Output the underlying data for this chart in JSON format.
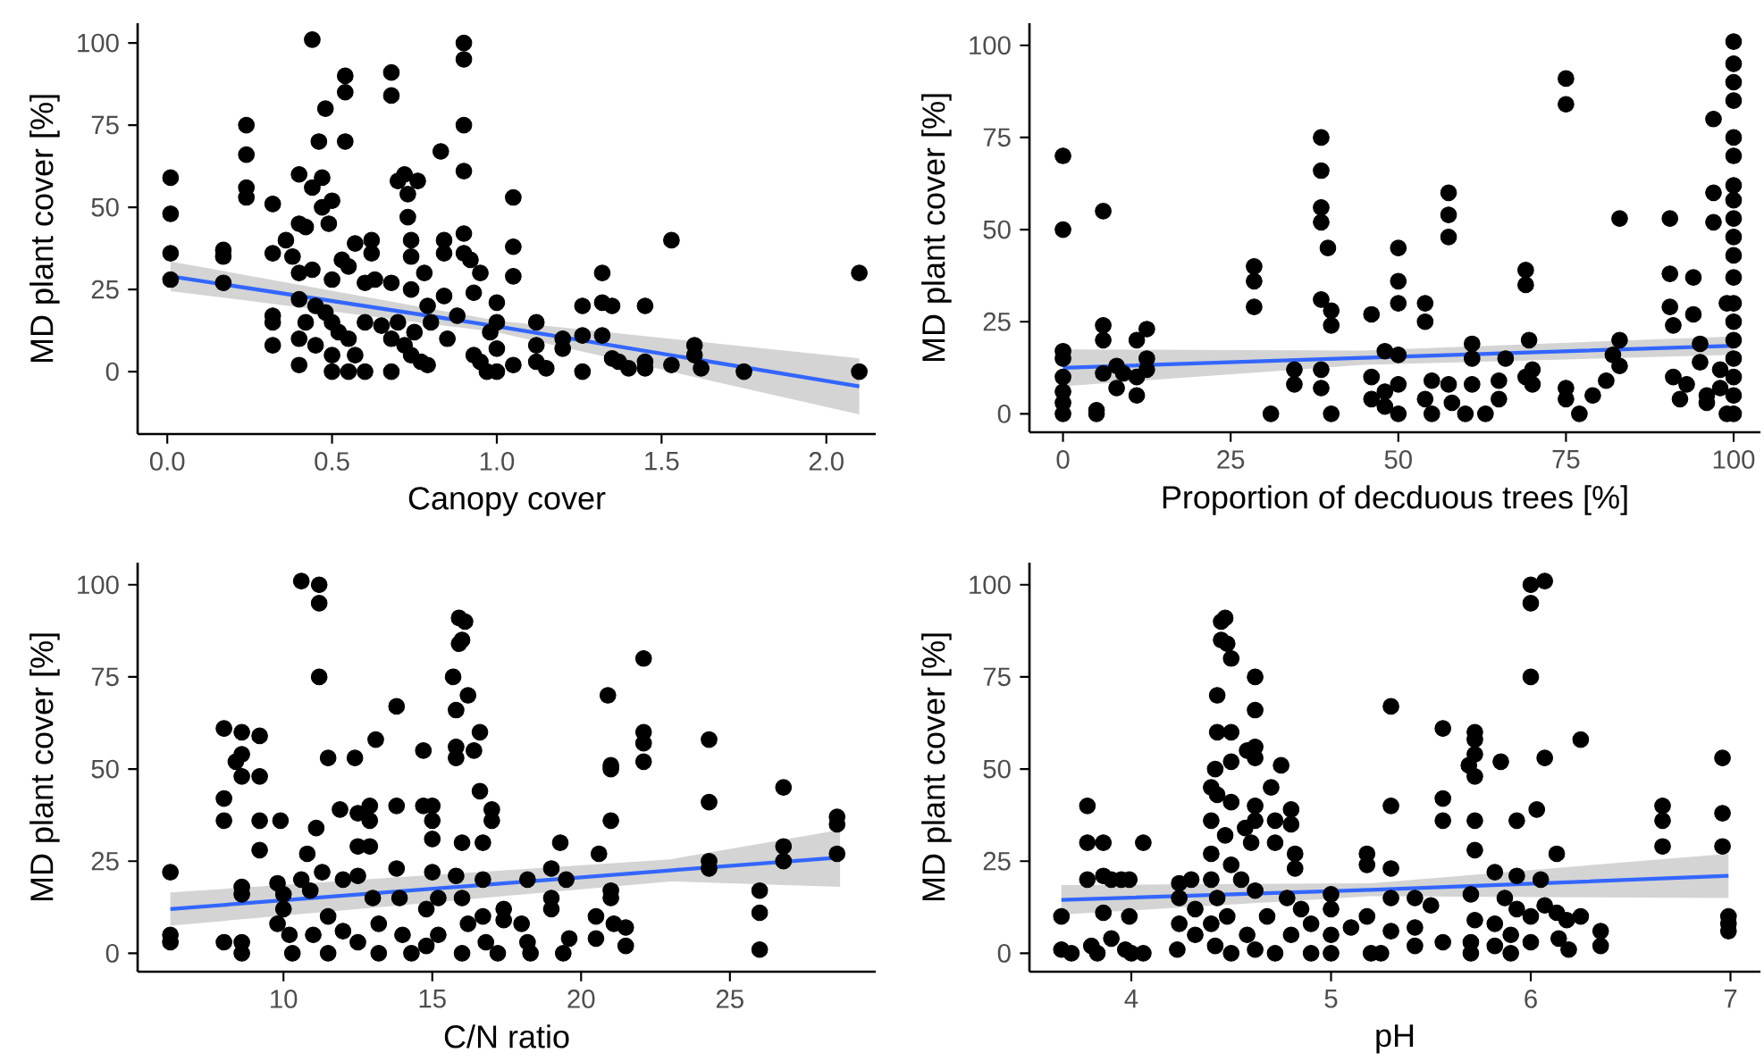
{
  "chart_data": [
    {
      "type": "scatter",
      "xlabel": "Canopy cover",
      "ylabel": "MD plant cover [%]",
      "xlim": [
        -0.09,
        2.15
      ],
      "ylim": [
        -19,
        106
      ],
      "xticks": [
        {
          "value": 0,
          "label": "0.0"
        },
        {
          "value": 0.5,
          "label": "0.5"
        },
        {
          "value": 1,
          "label": "1.0"
        },
        {
          "value": 1.5,
          "label": "1.5"
        },
        {
          "value": 2,
          "label": "2.0"
        }
      ],
      "yticks": [
        0,
        25,
        50,
        75,
        100
      ],
      "series": [
        {
          "color": "#000000",
          "marker": "circle",
          "x": [
            0.01,
            0.01,
            0.01,
            0.01,
            0.17,
            0.17,
            0.17,
            0.24,
            0.24,
            0.24,
            0.24,
            0.32,
            0.32,
            0.32,
            0.32,
            0.32,
            0.36,
            0.38,
            0.4,
            0.4,
            0.4,
            0.4,
            0.4,
            0.4,
            0.42,
            0.44,
            0.44,
            0.44,
            0.46,
            0.47,
            0.47,
            0.48,
            0.49,
            0.5,
            0.5,
            0.5,
            0.5,
            0.5,
            0.53,
            0.54,
            0.54,
            0.54,
            0.55,
            0.55,
            0.55,
            0.57,
            0.6,
            0.6,
            0.6,
            0.62,
            0.62,
            0.63,
            0.65,
            0.68,
            0.68,
            0.68,
            0.68,
            0.68,
            0.7,
            0.72,
            0.73,
            0.73,
            0.74,
            0.74,
            0.74,
            0.74,
            0.76,
            0.78,
            0.79,
            0.79,
            0.83,
            0.84,
            0.84,
            0.84,
            0.85,
            0.88,
            0.9,
            0.9,
            0.9,
            0.9,
            0.9,
            0.9,
            0.92,
            0.93,
            0.93,
            0.95,
            0.97,
            1.0,
            1.0,
            1.0,
            1.0,
            1.05,
            1.05,
            1.05,
            1.05,
            1.12,
            1.12,
            1.12,
            1.15,
            1.2,
            1.2,
            1.26,
            1.26,
            1.26,
            1.32,
            1.32,
            1.32,
            1.35,
            1.35,
            1.37,
            1.4,
            1.45,
            1.45,
            1.45,
            1.53,
            1.53,
            1.6,
            1.6,
            1.62,
            1.75,
            2.1,
            2.1,
            0.42,
            0.45,
            0.48,
            0.52,
            0.57,
            0.45,
            0.7,
            0.72,
            0.75,
            0.77,
            0.8,
            0.95,
            0.98
          ],
          "values": [
            59,
            48,
            36,
            28,
            37,
            35,
            27,
            75,
            66,
            56,
            53,
            51,
            36,
            17,
            15,
            8,
            40,
            35,
            60,
            45,
            30,
            22,
            10,
            2,
            44,
            101,
            56,
            31,
            70,
            59,
            50,
            80,
            45,
            52,
            28,
            15,
            5,
            0,
            34,
            90,
            85,
            70,
            32,
            10,
            0,
            39,
            27,
            15,
            0,
            40,
            36,
            28,
            14,
            91,
            84,
            27,
            10,
            0,
            58,
            60,
            54,
            47,
            40,
            35,
            25,
            5,
            58,
            30,
            20,
            2,
            67,
            40,
            36,
            23,
            10,
            17,
            100,
            95,
            75,
            61,
            42,
            36,
            34,
            24,
            5,
            30,
            0,
            21,
            15,
            7,
            0,
            53,
            38,
            29,
            2,
            15,
            8,
            3,
            1,
            10,
            7,
            20,
            11,
            0,
            30,
            21,
            11,
            20,
            4,
            3,
            1,
            20,
            1,
            3,
            40,
            2,
            8,
            5,
            1,
            0,
            30,
            0,
            15,
            8,
            18,
            12,
            5,
            20,
            15,
            8,
            12,
            3,
            15,
            3,
            12
          ]
        },
        {
          "type": "line",
          "color": "#3366ff",
          "x": [
            0.01,
            1.0,
            2.1
          ],
          "values": [
            29,
            13.8,
            -4.5
          ],
          "lower": [
            24.5,
            12,
            -13
          ],
          "upper": [
            33.5,
            15.5,
            4
          ]
        }
      ]
    },
    {
      "type": "scatter",
      "xlabel": "Proportion of decduous trees [%]",
      "ylabel": "MD plant cover [%]",
      "xlim": [
        -5,
        104
      ],
      "ylim": [
        -5,
        106
      ],
      "xticks": [
        0,
        25,
        50,
        75,
        100
      ],
      "yticks": [
        0,
        25,
        50,
        75,
        100
      ],
      "series": [
        {
          "color": "#000000",
          "marker": "circle",
          "x": [
            0,
            0,
            0,
            0,
            0,
            0,
            0,
            0,
            5,
            5,
            6,
            6,
            6,
            6,
            8,
            8,
            9,
            11,
            11,
            11,
            12.5,
            12.5,
            12.5,
            28.5,
            28.5,
            28.5,
            31,
            34.5,
            34.5,
            38.5,
            38.5,
            38.5,
            38.5,
            38.5,
            38.5,
            38.5,
            39.5,
            40,
            40,
            40,
            46,
            46,
            46,
            48,
            48,
            48,
            50,
            50,
            50,
            50,
            50,
            50,
            54,
            54,
            54,
            55,
            55,
            57.5,
            57.5,
            57.5,
            57.5,
            58,
            60,
            61,
            61,
            61,
            63,
            65,
            65,
            66,
            69,
            69,
            69,
            69.5,
            70,
            70,
            75,
            75,
            75,
            75,
            77,
            79,
            81,
            82,
            83,
            83,
            83,
            90.5,
            90.5,
            90.5,
            91,
            91,
            93,
            94,
            94,
            95,
            95,
            96,
            97,
            97,
            97,
            98,
            99,
            99,
            100,
            100,
            100,
            100,
            100,
            100,
            100,
            100,
            100,
            100,
            100,
            100,
            100,
            100,
            100,
            100,
            100,
            100,
            100,
            92,
            96,
            98
          ],
          "values": [
            70,
            50,
            17,
            15,
            10,
            6,
            3,
            0,
            1,
            0,
            55,
            24,
            20,
            11,
            13,
            7,
            11,
            20,
            10,
            5,
            23,
            15,
            12,
            40,
            36,
            29,
            0,
            12,
            8,
            75,
            66,
            56,
            52,
            31,
            12,
            7,
            45,
            28,
            24,
            0,
            27,
            10,
            4,
            17,
            6,
            2,
            45,
            36,
            30,
            16,
            8,
            0,
            30,
            25,
            4,
            9,
            0,
            60,
            54,
            48,
            8,
            3,
            0,
            19,
            15,
            8,
            0,
            9,
            4,
            15,
            39,
            35,
            10,
            20,
            12,
            8,
            91,
            84,
            7,
            4,
            0,
            5,
            9,
            16,
            53,
            20,
            13,
            53,
            38,
            29,
            24,
            10,
            8,
            37,
            27,
            19,
            14,
            5,
            80,
            60,
            52,
            7,
            0,
            30,
            101,
            95,
            90,
            85,
            75,
            70,
            62,
            58,
            53,
            48,
            43,
            37,
            30,
            25,
            20,
            15,
            10,
            5,
            0,
            4,
            3,
            12
          ]
        },
        {
          "type": "line",
          "color": "#3366ff",
          "x": [
            0,
            45,
            100
          ],
          "values": [
            12.5,
            15.2,
            18.5
          ],
          "lower": [
            7.5,
            13.3,
            16
          ],
          "upper": [
            17.5,
            17.2,
            21
          ]
        }
      ]
    },
    {
      "type": "scatter",
      "xlabel": "C/N ratio",
      "ylabel": "MD plant cover [%]",
      "xlim": [
        5.1,
        29.9
      ],
      "ylim": [
        -5,
        106
      ],
      "xticks": [
        10,
        15,
        20,
        25
      ],
      "yticks": [
        0,
        25,
        50,
        75,
        100
      ],
      "series": [
        {
          "color": "#000000",
          "marker": "circle",
          "x": [
            6.2,
            6.2,
            6.2,
            8,
            8,
            8,
            8,
            8.4,
            8.6,
            8.6,
            8.6,
            8.6,
            8.6,
            8.6,
            8.6,
            9.2,
            9.2,
            9.2,
            9.2,
            9.8,
            9.8,
            9.9,
            10,
            10,
            10.2,
            10.3,
            10.6,
            10.6,
            10.8,
            10.9,
            11,
            11.2,
            11.2,
            11.2,
            11.1,
            11.3,
            11.5,
            11.5,
            11.5,
            11.9,
            12,
            12,
            12.4,
            12.5,
            12.5,
            12.5,
            12.5,
            12.9,
            12.9,
            12.9,
            13,
            13.1,
            13.2,
            13.2,
            13.8,
            13.8,
            13.8,
            13.9,
            14,
            14.3,
            14.7,
            14.7,
            14.8,
            14.8,
            15,
            15,
            15,
            15,
            15.2,
            15.2,
            15.7,
            15.8,
            15.8,
            15.8,
            15.8,
            15.9,
            16.1,
            15.9,
            16,
            16.2,
            16,
            16,
            16.2,
            16,
            16.4,
            16.6,
            16.6,
            16.7,
            16.7,
            16.7,
            16.8,
            17,
            17,
            17.2,
            17.4,
            17.4,
            18,
            18.2,
            18.2,
            18.3,
            19,
            19,
            19,
            19.3,
            19.4,
            19.5,
            19.6,
            20.6,
            20.5,
            20.5,
            20.9,
            21,
            21,
            21,
            21,
            21,
            21.1,
            21.5,
            21.5,
            22.1,
            22.1,
            22.1,
            22.1,
            24.3,
            24.3,
            24.3,
            24.3,
            26,
            26,
            26,
            26.8,
            26.8,
            26.8,
            28.6,
            28.6,
            28.6
          ],
          "values": [
            22,
            5,
            3,
            61,
            42,
            36,
            3,
            52,
            54,
            60,
            48,
            18,
            16,
            3,
            0,
            59,
            48,
            36,
            28,
            19,
            8,
            36,
            16,
            12,
            5,
            0,
            101,
            20,
            27,
            17,
            5,
            100,
            95,
            75,
            34,
            22,
            53,
            10,
            0,
            39,
            20,
            6,
            53,
            38,
            29,
            21,
            3,
            40,
            36,
            29,
            15,
            58,
            8,
            0,
            67,
            40,
            23,
            15,
            5,
            0,
            55,
            40,
            12,
            2,
            40,
            36,
            31,
            22,
            15,
            5,
            75,
            66,
            56,
            53,
            21,
            91,
            90,
            84,
            85,
            70,
            30,
            15,
            8,
            0,
            55,
            60,
            44,
            30,
            20,
            10,
            3,
            39,
            36,
            0,
            12,
            9,
            8,
            20,
            3,
            0,
            23,
            15,
            12,
            30,
            0,
            20,
            4,
            27,
            10,
            4,
            70,
            51,
            50,
            36,
            17,
            15,
            8,
            7,
            2,
            80,
            60,
            57,
            52,
            58,
            41,
            25,
            23,
            17,
            11,
            1,
            45,
            29,
            25,
            37,
            35,
            27
          ]
        },
        {
          "type": "line",
          "color": "#3366ff",
          "x": [
            6.2,
            23,
            28.7
          ],
          "values": [
            12,
            22.5,
            26
          ],
          "lower": [
            7.5,
            19.5,
            18
          ],
          "upper": [
            16.5,
            25.5,
            33.5
          ]
        }
      ]
    },
    {
      "type": "scatter",
      "xlabel": "pH",
      "ylabel": "MD plant cover [%]",
      "xlim": [
        3.49,
        7.15
      ],
      "ylim": [
        -5,
        106
      ],
      "xticks": [
        4,
        5,
        6,
        7
      ],
      "yticks": [
        0,
        25,
        50,
        75,
        100
      ],
      "series": [
        {
          "color": "#000000",
          "marker": "circle",
          "x": [
            3.65,
            3.65,
            3.7,
            3.78,
            3.78,
            3.78,
            3.8,
            3.83,
            3.86,
            3.86,
            3.86,
            3.9,
            3.9,
            3.95,
            3.97,
            3.99,
            3.99,
            4.0,
            4.06,
            4.06,
            4.23,
            4.24,
            4.24,
            4.24,
            4.3,
            4.32,
            4.32,
            4.4,
            4.4,
            4.4,
            4.4,
            4.4,
            4.42,
            4.42,
            4.43,
            4.43,
            4.43,
            4.43,
            4.45,
            4.45,
            4.47,
            4.48,
            4.47,
            4.48,
            4.5,
            4.5,
            4.5,
            4.5,
            4.5,
            4.5,
            4.55,
            4.57,
            4.58,
            4.58,
            4.6,
            4.62,
            4.62,
            4.62,
            4.62,
            4.62,
            4.62,
            4.62,
            4.62,
            4.68,
            4.7,
            4.72,
            4.72,
            4.72,
            4.75,
            4.78,
            4.8,
            4.8,
            4.8,
            4.82,
            4.82,
            4.85,
            4.9,
            4.9,
            5.0,
            5.0,
            5.0,
            5.0,
            5.1,
            5.18,
            5.18,
            5.18,
            5.2,
            5.25,
            5.3,
            5.3,
            5.3,
            5.3,
            5.3,
            5.42,
            5.42,
            5.42,
            5.5,
            5.56,
            5.56,
            5.56,
            5.56,
            5.69,
            5.7,
            5.7,
            5.7,
            5.72,
            5.72,
            5.72,
            5.72,
            5.72,
            5.72,
            5.72,
            5.82,
            5.82,
            5.82,
            5.85,
            5.87,
            5.9,
            5.9,
            5.93,
            5.93,
            5.93,
            6.0,
            6.0,
            6.0,
            6.0,
            6.0,
            6.03,
            6.05,
            6.07,
            6.07,
            6.07,
            6.13,
            6.13,
            6.14,
            6.18,
            6.19,
            6.25,
            6.25,
            6.35,
            6.35,
            6.66,
            6.66,
            6.66,
            6.96,
            6.96,
            6.96,
            6.99,
            6.99,
            6.99
          ],
          "values": [
            10,
            1,
            0,
            40,
            30,
            20,
            2,
            0,
            30,
            21,
            11,
            4,
            20,
            20,
            1,
            20,
            10,
            0,
            30,
            0,
            1,
            19,
            15,
            8,
            20,
            12,
            5,
            45,
            36,
            27,
            20,
            8,
            50,
            2,
            70,
            60,
            43,
            15,
            90,
            85,
            91,
            84,
            32,
            10,
            80,
            60,
            52,
            41,
            24,
            0,
            20,
            34,
            55,
            5,
            30,
            75,
            66,
            56,
            53,
            40,
            36,
            17,
            1,
            10,
            45,
            36,
            30,
            0,
            51,
            15,
            39,
            35,
            5,
            27,
            23,
            12,
            0,
            8,
            16,
            12,
            5,
            0,
            7,
            27,
            24,
            10,
            0,
            0,
            67,
            40,
            23,
            15,
            6,
            15,
            7,
            2,
            13,
            61,
            42,
            36,
            3,
            51,
            16,
            3,
            0,
            60,
            58,
            54,
            48,
            36,
            28,
            9,
            22,
            8,
            2,
            52,
            15,
            5,
            0,
            36,
            21,
            12,
            100,
            95,
            75,
            10,
            3,
            39,
            20,
            101,
            53,
            13,
            27,
            11,
            4,
            9,
            1,
            58,
            10,
            6,
            2,
            40,
            36,
            29,
            53,
            38,
            29,
            10,
            8,
            6
          ]
        },
        {
          "type": "line",
          "color": "#3366ff",
          "x": [
            3.65,
            5.2,
            6.99
          ],
          "values": [
            14.5,
            17.2,
            21
          ],
          "lower": [
            10.5,
            15.5,
            15
          ],
          "upper": [
            18.5,
            19,
            27
          ]
        }
      ]
    }
  ]
}
